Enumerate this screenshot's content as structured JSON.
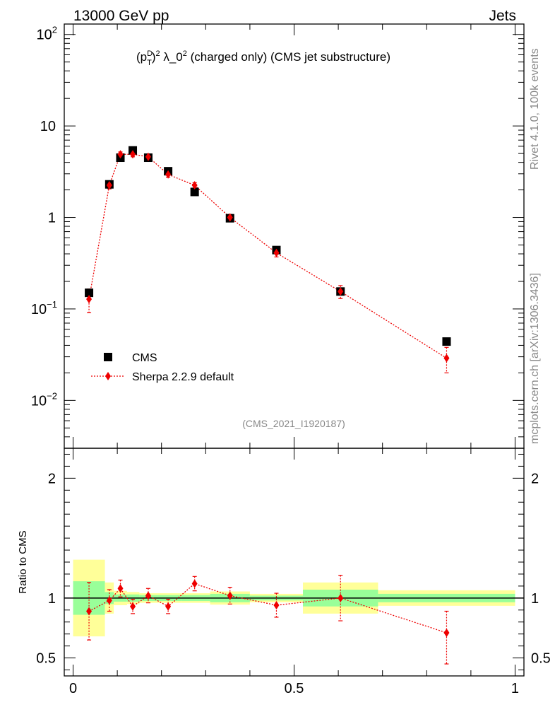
{
  "header": {
    "left": "13000 GeV pp",
    "right": "Jets"
  },
  "side_labels": {
    "rivet": "Rivet 4.1.0,  100k events",
    "mcplots": "mcplots.cern.ch [arXiv:1306.3436]"
  },
  "chart_data": [
    {
      "type": "scatter",
      "title": {
        "open": "(p",
        "sup_d": "D",
        "sub_t": "T",
        "close": ")",
        "exp2a": "2",
        "lambda": " λ_0",
        "exp2b": "2",
        "rest": " (charged only) (CMS jet substructure)"
      },
      "analysis_id": "(CMS_2021_I1920187)",
      "yscale": "log",
      "ylim": [
        0.003,
        130
      ],
      "xlim": [
        -0.02,
        1.02
      ],
      "y_ticks": [
        {
          "value": 0.01,
          "base": "10",
          "exp": "−2"
        },
        {
          "value": 0.1,
          "base": "10",
          "exp": "−1"
        },
        {
          "value": 1,
          "base": "1",
          "exp": ""
        },
        {
          "value": 10,
          "base": "10",
          "exp": ""
        },
        {
          "value": 100,
          "base": "10",
          "exp": "2"
        }
      ],
      "legend": {
        "data_label": "CMS",
        "mc_label": "Sherpa 2.2.9 default"
      },
      "series": [
        {
          "name": "CMS",
          "x": [
            0.036,
            0.082,
            0.107,
            0.135,
            0.17,
            0.215,
            0.275,
            0.355,
            0.46,
            0.605,
            0.845
          ],
          "values": [
            0.15,
            2.3,
            4.5,
            5.4,
            4.5,
            3.2,
            1.9,
            0.98,
            0.44,
            0.155,
            0.044
          ]
        },
        {
          "name": "Sherpa 2.2.9 default",
          "x": [
            0.036,
            0.082,
            0.107,
            0.135,
            0.17,
            0.215,
            0.275,
            0.355,
            0.46,
            0.605,
            0.845
          ],
          "values": [
            0.128,
            2.25,
            4.9,
            4.9,
            4.6,
            2.95,
            2.25,
            1.0,
            0.41,
            0.155,
            0.029
          ],
          "err_lo": [
            0.037,
            0.2,
            0.3,
            0.3,
            0.3,
            0.2,
            0.15,
            0.08,
            0.04,
            0.025,
            0.009
          ],
          "err_hi": [
            0.037,
            0.2,
            0.3,
            0.3,
            0.3,
            0.2,
            0.15,
            0.08,
            0.04,
            0.025,
            0.009
          ]
        }
      ]
    },
    {
      "type": "scatter",
      "ylabel": "Ratio to CMS",
      "ylim": [
        0.35,
        2.25
      ],
      "xlim": [
        -0.02,
        1.02
      ],
      "y_ticks": [
        {
          "value": 0.5,
          "label": "0.5"
        },
        {
          "value": 1,
          "label": "1"
        },
        {
          "value": 2,
          "label": "2"
        }
      ],
      "x_ticks": [
        {
          "value": 0,
          "label": "0"
        },
        {
          "value": 0.5,
          "label": "0.5"
        },
        {
          "value": 1,
          "label": "1"
        }
      ],
      "bands": [
        {
          "x0": 0.0,
          "x1": 0.072,
          "inner": [
            0.86,
            1.14
          ],
          "outer": [
            0.68,
            1.32
          ]
        },
        {
          "x0": 0.072,
          "x1": 0.092,
          "inner": [
            0.95,
            1.05
          ],
          "outer": [
            0.87,
            1.13
          ]
        },
        {
          "x0": 0.092,
          "x1": 0.122,
          "inner": [
            0.97,
            1.03
          ],
          "outer": [
            0.94,
            1.06
          ]
        },
        {
          "x0": 0.122,
          "x1": 0.15,
          "inner": [
            0.97,
            1.03
          ],
          "outer": [
            0.95,
            1.05
          ]
        },
        {
          "x0": 0.15,
          "x1": 0.19,
          "inner": [
            0.975,
            1.025
          ],
          "outer": [
            0.96,
            1.04
          ]
        },
        {
          "x0": 0.19,
          "x1": 0.245,
          "inner": [
            0.975,
            1.025
          ],
          "outer": [
            0.96,
            1.04
          ]
        },
        {
          "x0": 0.245,
          "x1": 0.31,
          "inner": [
            0.975,
            1.025
          ],
          "outer": [
            0.96,
            1.04
          ]
        },
        {
          "x0": 0.31,
          "x1": 0.4,
          "inner": [
            0.965,
            1.035
          ],
          "outer": [
            0.945,
            1.055
          ]
        },
        {
          "x0": 0.4,
          "x1": 0.52,
          "inner": [
            0.98,
            1.02
          ],
          "outer": [
            0.965,
            1.035
          ]
        },
        {
          "x0": 0.52,
          "x1": 0.69,
          "inner": [
            0.93,
            1.07
          ],
          "outer": [
            0.87,
            1.13
          ]
        },
        {
          "x0": 0.69,
          "x1": 1.0,
          "inner": [
            0.965,
            1.035
          ],
          "outer": [
            0.935,
            1.065
          ]
        }
      ],
      "series": [
        {
          "name": "Sherpa 2.2.9 default",
          "x": [
            0.036,
            0.082,
            0.107,
            0.135,
            0.17,
            0.215,
            0.275,
            0.355,
            0.46,
            0.605,
            0.845
          ],
          "values": [
            0.89,
            0.98,
            1.08,
            0.93,
            1.02,
            0.93,
            1.12,
            1.02,
            0.94,
            1.0,
            0.71
          ],
          "err_lo": [
            0.24,
            0.09,
            0.07,
            0.06,
            0.06,
            0.06,
            0.06,
            0.07,
            0.1,
            0.19,
            0.26
          ],
          "err_hi": [
            0.24,
            0.09,
            0.07,
            0.06,
            0.06,
            0.06,
            0.06,
            0.07,
            0.1,
            0.19,
            0.18
          ]
        }
      ]
    }
  ]
}
